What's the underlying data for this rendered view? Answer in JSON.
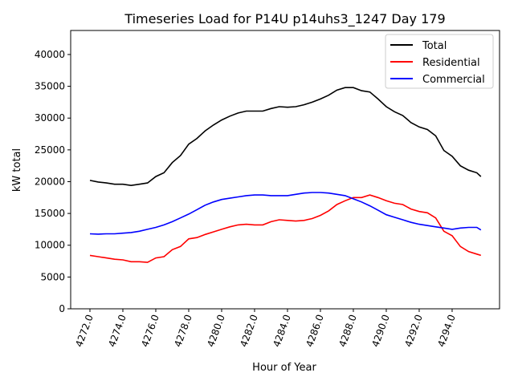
{
  "chart_data": {
    "type": "line",
    "title": "Timeseries Load for P14U p14uhs3_1247  Day 179",
    "xlabel": "Hour of Year",
    "ylabel": "kW total",
    "xlim": [
      4270.83,
      4296.88
    ],
    "ylim": [
      0,
      43780
    ],
    "xticks": [
      4272,
      4274,
      4276,
      4278,
      4280,
      4282,
      4284,
      4286,
      4288,
      4290,
      4292,
      4294
    ],
    "xtick_labels": [
      "4272.0",
      "4274.0",
      "4276.0",
      "4278.0",
      "4280.0",
      "4282.0",
      "4284.0",
      "4286.0",
      "4288.0",
      "4290.0",
      "4292.0",
      "4294.0"
    ],
    "yticks": [
      0,
      5000,
      10000,
      15000,
      20000,
      25000,
      30000,
      35000,
      40000
    ],
    "ytick_labels": [
      "0",
      "5000",
      "10000",
      "15000",
      "20000",
      "25000",
      "30000",
      "35000",
      "40000"
    ],
    "legend_position": "top-right",
    "grid": false,
    "x": [
      4272,
      4272.5,
      4273,
      4273.5,
      4274,
      4274.5,
      4275,
      4275.5,
      4276,
      4276.5,
      4277,
      4277.5,
      4278,
      4278.5,
      4279,
      4279.5,
      4280,
      4280.5,
      4281,
      4281.5,
      4282,
      4282.5,
      4283,
      4283.5,
      4284,
      4284.5,
      4285,
      4285.5,
      4286,
      4286.5,
      4287,
      4287.5,
      4288,
      4288.5,
      4289,
      4289.5,
      4290,
      4290.5,
      4291,
      4291.5,
      4292,
      4292.5,
      4293,
      4293.5,
      4294,
      4294.5,
      4295,
      4295.5,
      4295.75
    ],
    "series": [
      {
        "name": "Total",
        "color": "#000000",
        "values": [
          20200,
          19950,
          19800,
          19600,
          19600,
          19400,
          19600,
          19800,
          20800,
          21400,
          23000,
          24100,
          25900,
          26800,
          28000,
          28900,
          29700,
          30300,
          30800,
          31100,
          31100,
          31100,
          31500,
          31800,
          31700,
          31800,
          32100,
          32500,
          33000,
          33600,
          34400,
          34800,
          34800,
          34300,
          34100,
          33000,
          31800,
          31000,
          30400,
          29300,
          28600,
          28200,
          27200,
          24900,
          24000,
          22500,
          21800,
          21400,
          20800
        ]
      },
      {
        "name": "Residential",
        "color": "#ff0000",
        "values": [
          8400,
          8200,
          8000,
          7800,
          7700,
          7400,
          7400,
          7300,
          8000,
          8200,
          9300,
          9800,
          11000,
          11200,
          11700,
          12100,
          12500,
          12900,
          13200,
          13300,
          13200,
          13200,
          13700,
          14000,
          13900,
          13800,
          13900,
          14200,
          14700,
          15400,
          16400,
          17000,
          17500,
          17500,
          17900,
          17500,
          17000,
          16600,
          16400,
          15700,
          15300,
          15100,
          14300,
          12200,
          11500,
          9800,
          9000,
          8600,
          8400
        ]
      },
      {
        "name": "Commercial",
        "color": "#0000ff",
        "values": [
          11800,
          11750,
          11800,
          11800,
          11900,
          12000,
          12200,
          12500,
          12800,
          13200,
          13700,
          14300,
          14900,
          15600,
          16300,
          16800,
          17200,
          17400,
          17600,
          17800,
          17900,
          17900,
          17800,
          17800,
          17800,
          18000,
          18200,
          18300,
          18300,
          18200,
          18000,
          17800,
          17300,
          16800,
          16200,
          15500,
          14800,
          14400,
          14000,
          13600,
          13300,
          13100,
          12900,
          12700,
          12500,
          12700,
          12800,
          12800,
          12400
        ]
      }
    ]
  }
}
